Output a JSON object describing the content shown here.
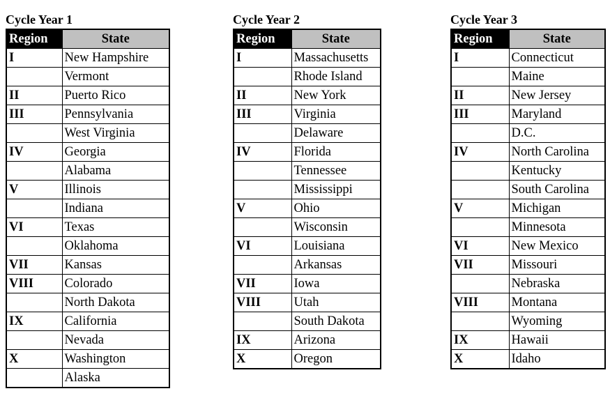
{
  "tables": [
    {
      "title": "Cycle Year 1",
      "headers": [
        "Region",
        "State"
      ],
      "rows": [
        [
          "I",
          "New Hampshire"
        ],
        [
          "",
          "Vermont"
        ],
        [
          "II",
          "Puerto Rico"
        ],
        [
          "III",
          "Pennsylvania"
        ],
        [
          "",
          "West Virginia"
        ],
        [
          "IV",
          "Georgia"
        ],
        [
          "",
          "Alabama"
        ],
        [
          "V",
          "Illinois"
        ],
        [
          "",
          "Indiana"
        ],
        [
          "VI",
          "Texas"
        ],
        [
          "",
          "Oklahoma"
        ],
        [
          "VII",
          "Kansas"
        ],
        [
          "VIII",
          "Colorado"
        ],
        [
          "",
          "North Dakota"
        ],
        [
          "IX",
          "California"
        ],
        [
          "",
          "Nevada"
        ],
        [
          "X",
          "Washington"
        ],
        [
          "",
          "Alaska"
        ]
      ]
    },
    {
      "title": "Cycle Year 2",
      "headers": [
        "Region",
        "State"
      ],
      "rows": [
        [
          "I",
          "Massachusetts"
        ],
        [
          "",
          "Rhode Island"
        ],
        [
          "II",
          "New York"
        ],
        [
          "III",
          "Virginia"
        ],
        [
          "",
          "Delaware"
        ],
        [
          "IV",
          "Florida"
        ],
        [
          "",
          "Tennessee"
        ],
        [
          "",
          "Mississippi"
        ],
        [
          "V",
          "Ohio"
        ],
        [
          "",
          "Wisconsin"
        ],
        [
          "VI",
          "Louisiana"
        ],
        [
          "",
          "Arkansas"
        ],
        [
          "VII",
          "Iowa"
        ],
        [
          "VIII",
          "Utah"
        ],
        [
          "",
          "South Dakota"
        ],
        [
          "IX",
          "Arizona"
        ],
        [
          "X",
          "Oregon"
        ]
      ]
    },
    {
      "title": "Cycle Year 3",
      "headers": [
        "Region",
        "State"
      ],
      "rows": [
        [
          "I",
          "Connecticut"
        ],
        [
          "",
          "Maine"
        ],
        [
          "II",
          "New Jersey"
        ],
        [
          "III",
          "Maryland"
        ],
        [
          "",
          "D.C."
        ],
        [
          "IV",
          "North Carolina"
        ],
        [
          "",
          "Kentucky"
        ],
        [
          "",
          "South Carolina"
        ],
        [
          "V",
          "Michigan"
        ],
        [
          "",
          "Minnesota"
        ],
        [
          "VI",
          "New Mexico"
        ],
        [
          "VII",
          "Missouri"
        ],
        [
          "",
          "Nebraska"
        ],
        [
          "VIII",
          "Montana"
        ],
        [
          "",
          "Wyoming"
        ],
        [
          "IX",
          "Hawaii"
        ],
        [
          "X",
          "Idaho"
        ]
      ]
    }
  ]
}
